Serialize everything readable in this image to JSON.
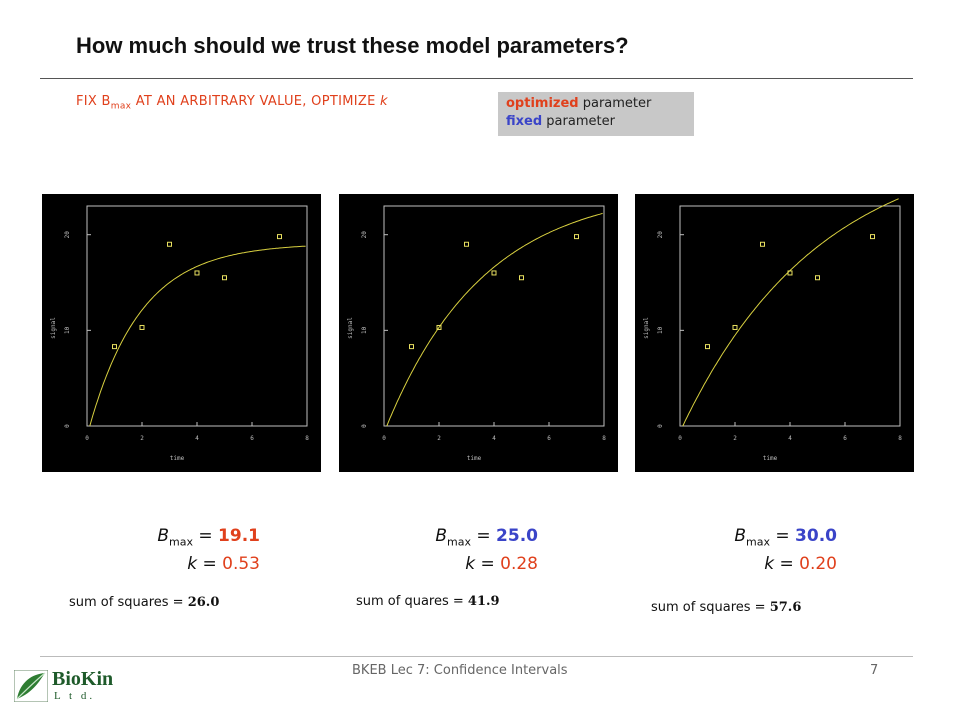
{
  "title": "How much should we trust these model parameters?",
  "subtitle": {
    "prefix": "FIX B",
    "sub": "max",
    "suffix": " AT AN ARBITRARY VALUE, OPTIMIZE ",
    "k": "k"
  },
  "legend": {
    "optimized": "optimized",
    "optimized_rest": " parameter",
    "fixed": "fixed",
    "fixed_rest": " parameter"
  },
  "colors": {
    "optimized": "#e0401c",
    "fixed": "#3a44c8",
    "curve": "#d8d040",
    "points": "#e8e060"
  },
  "chart_data": [
    {
      "type": "scatter",
      "xlabel": "time",
      "ylabel": "signal",
      "xlim": [
        0,
        8
      ],
      "ylim": [
        0,
        23
      ],
      "xticks": [
        "0",
        "2",
        "4",
        "6",
        "8"
      ],
      "yticks": [
        "0",
        "10",
        "20"
      ],
      "points_x": [
        1,
        2,
        3,
        4,
        5,
        7
      ],
      "points_y": [
        8.3,
        10.3,
        19,
        16,
        15.5,
        19.8
      ],
      "model": {
        "Bmax": 19.1,
        "k": 0.53
      }
    },
    {
      "type": "scatter",
      "xlabel": "time",
      "ylabel": "signal",
      "xlim": [
        0,
        8
      ],
      "ylim": [
        0,
        23
      ],
      "xticks": [
        "0",
        "2",
        "4",
        "6",
        "8"
      ],
      "yticks": [
        "0",
        "10",
        "20"
      ],
      "points_x": [
        1,
        2,
        3,
        4,
        5,
        7
      ],
      "points_y": [
        8.3,
        10.3,
        19,
        16,
        15.5,
        19.8
      ],
      "model": {
        "Bmax": 25.0,
        "k": 0.28
      }
    },
    {
      "type": "scatter",
      "xlabel": "time",
      "ylabel": "signal",
      "xlim": [
        0,
        8
      ],
      "ylim": [
        0,
        23
      ],
      "xticks": [
        "0",
        "2",
        "4",
        "6",
        "8"
      ],
      "yticks": [
        "0",
        "10",
        "20"
      ],
      "points_x": [
        1,
        2,
        3,
        4,
        5,
        7
      ],
      "points_y": [
        8.3,
        10.3,
        19,
        16,
        15.5,
        19.8
      ],
      "model": {
        "Bmax": 30.0,
        "k": 0.2
      }
    }
  ],
  "panels": [
    {
      "b_label": "B",
      "b_sub": "max",
      "b_eq": " = ",
      "b_val": "19.1",
      "k_label": "k",
      "k_eq": " = ",
      "k_val": "0.53",
      "ssq_label": "sum of squares = ",
      "ssq_val": "26.0"
    },
    {
      "b_label": "B",
      "b_sub": "max",
      "b_eq": " = ",
      "b_val": "25.0",
      "k_label": "k",
      "k_eq": " = ",
      "k_val": "0.28",
      "ssq_label": "sum of quares = ",
      "ssq_val": "41.9"
    },
    {
      "b_label": "B",
      "b_sub": "max",
      "b_eq": " = ",
      "b_val": "30.0",
      "k_label": "k",
      "k_eq": " = ",
      "k_val": "0.20",
      "ssq_label": "sum of squares = ",
      "ssq_val": "57.6"
    }
  ],
  "footer": {
    "text": "BKEB Lec 7: Confidence Intervals",
    "page": "7"
  },
  "logo": {
    "name": "BioKin",
    "ltd": "L t d."
  }
}
